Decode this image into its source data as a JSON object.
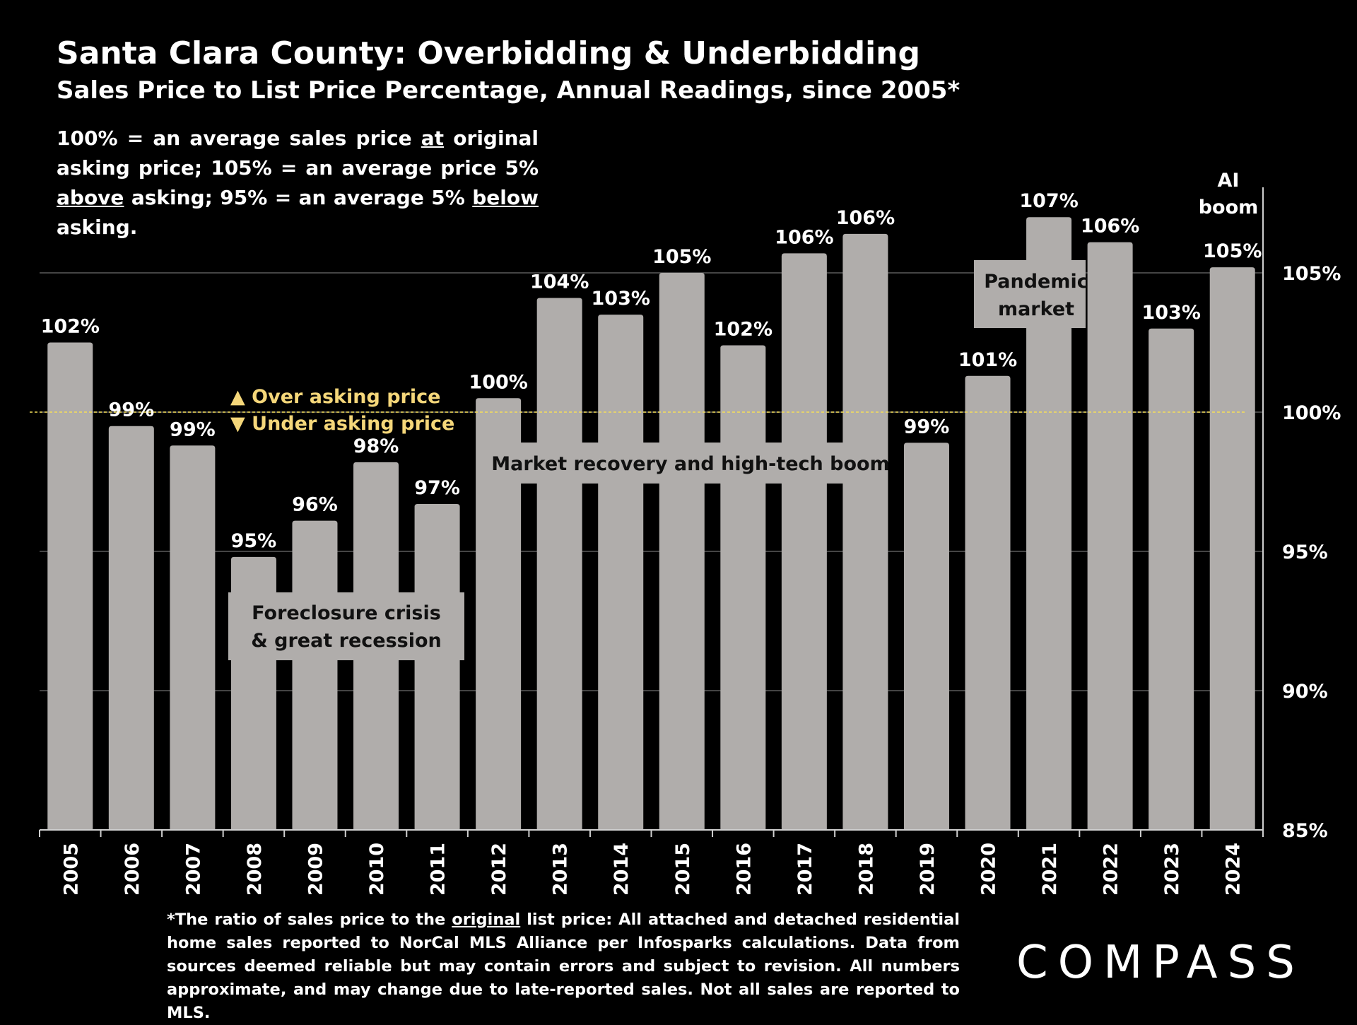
{
  "header": {
    "title": "Santa Clara County: Overbidding & Underbidding",
    "subtitle": "Sales Price to List Price Percentage, Annual Readings, since 2005*"
  },
  "note": {
    "p1": "100% = an average sales price ",
    "u1": "at",
    "p2": " original asking price; 105% = an average price 5% ",
    "u2": "above",
    "p3": " asking; 95% = an average 5% ",
    "u3": "below",
    "p4": " asking."
  },
  "footnote": {
    "p1": "*The ratio of sales price to the ",
    "u1": "original",
    "p2": " list price: All attached and detached residential home sales reported to NorCal MLS Alliance per Infosparks calculations. Data from sources deemed reliable but may contain errors and subject to revision. All numbers approximate, and may change due to late-reported sales. Not all sales are reported to MLS."
  },
  "logo": {
    "text": "COMPASS"
  },
  "colors": {
    "bar": "#b0adab",
    "threshold": "#f5df5a",
    "legend": "#f5d77a",
    "annotation_box": "#b0adab"
  },
  "chart_data": {
    "type": "bar",
    "categories": [
      "2005",
      "2006",
      "2007",
      "2008",
      "2009",
      "2010",
      "2011",
      "2012",
      "2013",
      "2014",
      "2015",
      "2016",
      "2017",
      "2018",
      "2019",
      "2020",
      "2021",
      "2022",
      "2023",
      "2024"
    ],
    "values": [
      102.5,
      99.5,
      98.8,
      94.8,
      96.1,
      98.2,
      96.7,
      100.5,
      104.1,
      103.5,
      105.0,
      102.4,
      105.7,
      106.4,
      98.9,
      101.3,
      107.0,
      106.1,
      103.0,
      105.2
    ],
    "value_labels": [
      "102%",
      "99%",
      "99%",
      "95%",
      "96%",
      "98%",
      "97%",
      "100%",
      "104%",
      "103%",
      "105%",
      "102%",
      "106%",
      "106%",
      "99%",
      "101%",
      "107%",
      "106%",
      "103%",
      "105%"
    ],
    "ylim": [
      85,
      108
    ],
    "yticks": [
      85,
      90,
      95,
      100,
      105
    ],
    "ytick_labels": [
      "85%",
      "90%",
      "95%",
      "100%",
      "105%"
    ],
    "reference_line": 100,
    "legend": {
      "over": "▲ Over asking price",
      "under": "▼ Under asking price"
    },
    "annotations": {
      "recession_l1": "Foreclosure crisis",
      "recession_l2": "& great recession",
      "recovery": "Market recovery and high-tech boom",
      "pandemic_l1": "Pandemic",
      "pandemic_l2": "market",
      "ai_l1": "AI",
      "ai_l2": "boom"
    }
  }
}
